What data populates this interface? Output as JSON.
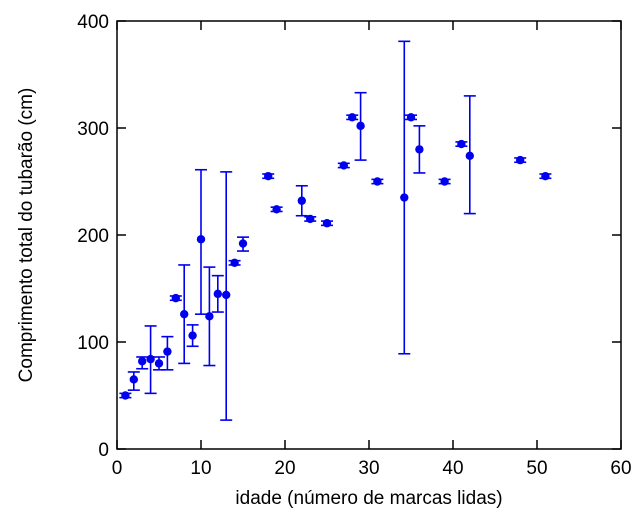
{
  "chart_data": {
    "type": "scatter",
    "xlabel": "idade (número de marcas lidas)",
    "ylabel": "Comprimento total do tubarão (cm)",
    "xlim": [
      0,
      60
    ],
    "ylim": [
      0,
      400
    ],
    "xticks": [
      0,
      10,
      20,
      30,
      40,
      50,
      60
    ],
    "yticks": [
      0,
      100,
      200,
      300,
      400
    ],
    "grid": false,
    "color": "#0000ee",
    "points": [
      {
        "x": 1,
        "y": 50,
        "low": 48,
        "high": 52
      },
      {
        "x": 2,
        "y": 65,
        "low": 55,
        "high": 72
      },
      {
        "x": 3,
        "y": 82,
        "low": 75,
        "high": 86
      },
      {
        "x": 4,
        "y": 84,
        "low": 52,
        "high": 115
      },
      {
        "x": 5,
        "y": 80,
        "low": 74,
        "high": 86
      },
      {
        "x": 6,
        "y": 91,
        "low": 74,
        "high": 105
      },
      {
        "x": 7,
        "y": 141,
        "low": 139,
        "high": 143
      },
      {
        "x": 8,
        "y": 126,
        "low": 80,
        "high": 172
      },
      {
        "x": 9,
        "y": 106,
        "low": 96,
        "high": 116
      },
      {
        "x": 10,
        "y": 196,
        "low": 126,
        "high": 261
      },
      {
        "x": 11,
        "y": 124,
        "low": 78,
        "high": 170
      },
      {
        "x": 12,
        "y": 145,
        "low": 128,
        "high": 162
      },
      {
        "x": 13,
        "y": 144,
        "low": 27,
        "high": 259
      },
      {
        "x": 14,
        "y": 174,
        "low": 172,
        "high": 176
      },
      {
        "x": 15,
        "y": 192,
        "low": 185,
        "high": 198
      },
      {
        "x": 18,
        "y": 255,
        "low": 253,
        "high": 257
      },
      {
        "x": 19,
        "y": 224,
        "low": 222,
        "high": 226
      },
      {
        "x": 22,
        "y": 232,
        "low": 218,
        "high": 246
      },
      {
        "x": 23,
        "y": 215,
        "low": 213,
        "high": 217
      },
      {
        "x": 25,
        "y": 211,
        "low": 209,
        "high": 213
      },
      {
        "x": 27,
        "y": 265,
        "low": 263,
        "high": 267
      },
      {
        "x": 28,
        "y": 310,
        "low": 308,
        "high": 312
      },
      {
        "x": 29,
        "y": 302,
        "low": 270,
        "high": 333
      },
      {
        "x": 31,
        "y": 250,
        "low": 248,
        "high": 252
      },
      {
        "x": 34.2,
        "y": 235,
        "low": 89,
        "high": 381
      },
      {
        "x": 35,
        "y": 310,
        "low": 308,
        "high": 312
      },
      {
        "x": 36,
        "y": 280,
        "low": 258,
        "high": 302
      },
      {
        "x": 39,
        "y": 250,
        "low": 248,
        "high": 252
      },
      {
        "x": 41,
        "y": 285,
        "low": 283,
        "high": 287
      },
      {
        "x": 42,
        "y": 274,
        "low": 220,
        "high": 330
      },
      {
        "x": 48,
        "y": 270,
        "low": 268,
        "high": 272
      },
      {
        "x": 51,
        "y": 255,
        "low": 253,
        "high": 257
      }
    ]
  }
}
